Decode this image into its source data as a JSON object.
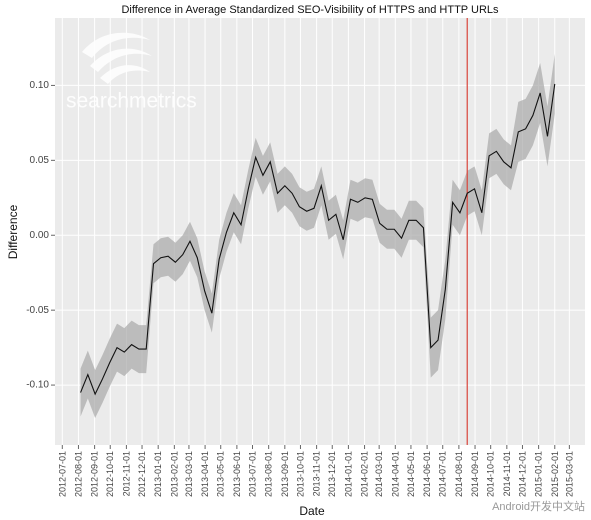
{
  "chart_data": {
    "type": "line_band",
    "title": "Difference in Average Standardized SEO-Visibility of HTTPS and HTTP URLs",
    "x_label": "Date",
    "y_label": "Difference",
    "watermark": "searchmetrics",
    "credit": "Android开发中文站",
    "color": "#111111",
    "band_color": "#a8a8a8",
    "background": "#ebebeb",
    "grid": true,
    "vline": {
      "x": "2014-08-17",
      "color": "#d9443a"
    },
    "xlim": [
      "2012-06-17",
      "2015-03-31"
    ],
    "xticks": [
      "2012-07-01",
      "2012-08-01",
      "2012-09-01",
      "2012-10-01",
      "2012-11-01",
      "2012-12-01",
      "2013-01-01",
      "2013-02-01",
      "2013-03-01",
      "2013-04-01",
      "2013-05-01",
      "2013-06-01",
      "2013-07-01",
      "2013-08-01",
      "2013-09-01",
      "2013-10-01",
      "2013-11-01",
      "2013-12-01",
      "2014-01-01",
      "2014-02-01",
      "2014-03-01",
      "2014-04-01",
      "2014-05-01",
      "2014-06-01",
      "2014-07-01",
      "2014-08-01",
      "2014-09-01",
      "2014-10-01",
      "2014-11-01",
      "2014-12-01",
      "2015-01-01",
      "2015-02-01",
      "2015-03-01"
    ],
    "ylim": [
      -0.14,
      0.145
    ],
    "yticks": [
      {
        "value": -0.1,
        "label": "-0.10"
      },
      -0.05,
      {
        "value": 0,
        "label": "0.00"
      },
      0.05,
      {
        "value": 0.1,
        "label": "0.10"
      }
    ],
    "x": [
      "2012-08-05",
      "2012-08-19",
      "2012-09-02",
      "2012-09-16",
      "2012-09-30",
      "2012-10-14",
      "2012-10-28",
      "2012-11-11",
      "2012-11-25",
      "2012-12-09",
      "2012-12-23",
      "2013-01-06",
      "2013-01-20",
      "2013-02-03",
      "2013-02-17",
      "2013-03-03",
      "2013-03-17",
      "2013-03-31",
      "2013-04-14",
      "2013-04-28",
      "2013-05-12",
      "2013-05-26",
      "2013-06-09",
      "2013-06-23",
      "2013-07-07",
      "2013-07-21",
      "2013-08-04",
      "2013-08-18",
      "2013-09-01",
      "2013-09-15",
      "2013-09-29",
      "2013-10-13",
      "2013-10-27",
      "2013-11-10",
      "2013-11-24",
      "2013-12-08",
      "2013-12-22",
      "2014-01-05",
      "2014-01-19",
      "2014-02-02",
      "2014-02-16",
      "2014-03-02",
      "2014-03-16",
      "2014-03-30",
      "2014-04-13",
      "2014-04-27",
      "2014-05-11",
      "2014-05-25",
      "2014-06-08",
      "2014-06-22",
      "2014-07-06",
      "2014-07-20",
      "2014-08-03",
      "2014-08-17",
      "2014-08-31",
      "2014-09-14",
      "2014-09-28",
      "2014-10-12",
      "2014-10-26",
      "2014-11-09",
      "2014-11-23",
      "2014-12-07",
      "2014-12-21",
      "2015-01-04",
      "2015-01-18",
      "2015-02-01"
    ],
    "values": [
      -0.105,
      -0.093,
      -0.106,
      -0.096,
      -0.085,
      -0.075,
      -0.078,
      -0.073,
      -0.076,
      -0.076,
      -0.019,
      -0.015,
      -0.014,
      -0.018,
      -0.013,
      -0.004,
      -0.015,
      -0.037,
      -0.052,
      -0.016,
      0.002,
      0.015,
      0.007,
      0.031,
      0.052,
      0.04,
      0.049,
      0.028,
      0.033,
      0.028,
      0.019,
      0.016,
      0.018,
      0.033,
      0.01,
      0.014,
      -0.003,
      0.024,
      0.022,
      0.025,
      0.024,
      0.008,
      0.004,
      0.004,
      -0.002,
      0.01,
      0.01,
      0.005,
      -0.075,
      -0.07,
      -0.036,
      0.022,
      0.015,
      0.028,
      0.031,
      0.015,
      0.053,
      0.056,
      0.049,
      0.045,
      0.069,
      0.071,
      0.08,
      0.095,
      0.066,
      0.101
    ],
    "upper": [
      -0.089,
      -0.077,
      -0.09,
      -0.08,
      -0.069,
      -0.059,
      -0.062,
      -0.057,
      -0.06,
      -0.06,
      -0.006,
      -0.002,
      -0.001,
      -0.005,
      0.0,
      0.009,
      -0.002,
      -0.024,
      -0.039,
      -0.003,
      0.015,
      0.028,
      0.02,
      0.044,
      0.065,
      0.053,
      0.062,
      0.041,
      0.046,
      0.041,
      0.032,
      0.029,
      0.031,
      0.046,
      0.023,
      0.027,
      0.01,
      0.037,
      0.035,
      0.038,
      0.037,
      0.021,
      0.017,
      0.017,
      0.011,
      0.023,
      0.023,
      0.018,
      -0.055,
      -0.05,
      -0.016,
      0.037,
      0.03,
      0.043,
      0.046,
      0.03,
      0.068,
      0.071,
      0.064,
      0.06,
      0.089,
      0.091,
      0.1,
      0.115,
      0.086,
      0.121
    ],
    "lower": [
      -0.121,
      -0.109,
      -0.122,
      -0.112,
      -0.101,
      -0.091,
      -0.094,
      -0.089,
      -0.092,
      -0.092,
      -0.032,
      -0.028,
      -0.027,
      -0.031,
      -0.026,
      -0.017,
      -0.028,
      -0.05,
      -0.065,
      -0.029,
      -0.011,
      0.002,
      -0.006,
      0.018,
      0.039,
      0.027,
      0.036,
      0.015,
      0.02,
      0.015,
      0.006,
      0.003,
      0.005,
      0.02,
      -0.003,
      0.001,
      -0.016,
      0.011,
      0.009,
      0.012,
      0.011,
      -0.005,
      -0.009,
      -0.009,
      -0.015,
      -0.003,
      -0.003,
      -0.008,
      -0.095,
      -0.09,
      -0.056,
      0.007,
      0.0,
      0.013,
      0.016,
      0.0,
      0.038,
      0.041,
      0.034,
      0.03,
      0.049,
      0.051,
      0.06,
      0.075,
      0.046,
      0.081
    ]
  }
}
